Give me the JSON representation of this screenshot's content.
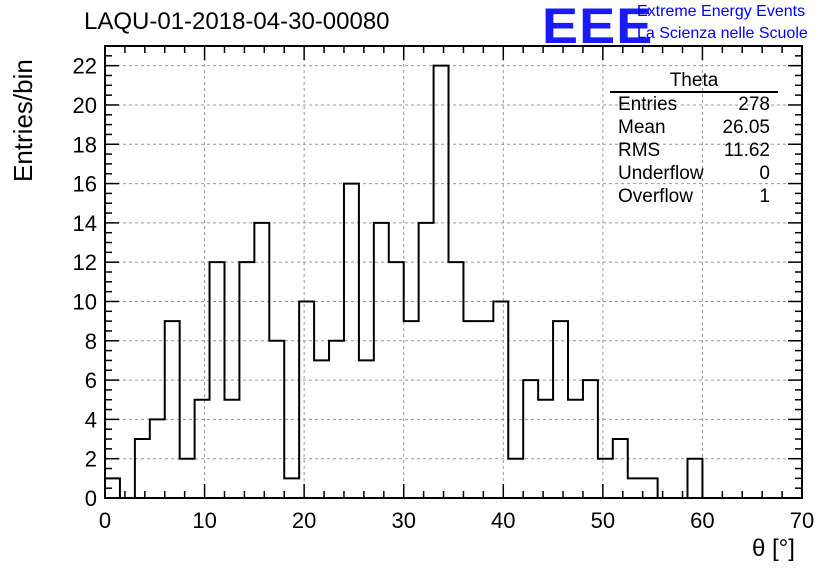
{
  "header": {
    "title": "LAQU-01-2018-04-30-00080",
    "logo": "EEE",
    "logo_line1": "Extreme Energy Events",
    "logo_line2": "La Scienza nelle Scuole"
  },
  "stats_box": {
    "title": "Theta",
    "rows": [
      {
        "label": "Entries",
        "value": "278"
      },
      {
        "label": "Mean",
        "value": "26.05"
      },
      {
        "label": "RMS",
        "value": "11.62"
      },
      {
        "label": "Underflow",
        "value": "0"
      },
      {
        "label": "Overflow",
        "value": "1"
      }
    ]
  },
  "chart_data": {
    "type": "bar",
    "style": "step-histogram",
    "xlabel": "θ [°]",
    "ylabel": "Entries/bin",
    "xlim": [
      0,
      70
    ],
    "ylim": [
      0,
      23
    ],
    "bin_width": 1.5,
    "bin_start": 0,
    "values": [
      1,
      0,
      3,
      4,
      9,
      2,
      5,
      12,
      5,
      12,
      14,
      8,
      1,
      10,
      7,
      8,
      16,
      7,
      14,
      12,
      9,
      14,
      22,
      12,
      9,
      9,
      10,
      2,
      6,
      5,
      9,
      5,
      6,
      2,
      3,
      1,
      1,
      0,
      0,
      2,
      0,
      0,
      0,
      0,
      0,
      0
    ],
    "xticks": [
      0,
      10,
      20,
      30,
      40,
      50,
      60,
      70
    ],
    "yticks": [
      0,
      2,
      4,
      6,
      8,
      10,
      12,
      14,
      16,
      18,
      20,
      22
    ],
    "grid": true,
    "line_color": "#000000"
  }
}
